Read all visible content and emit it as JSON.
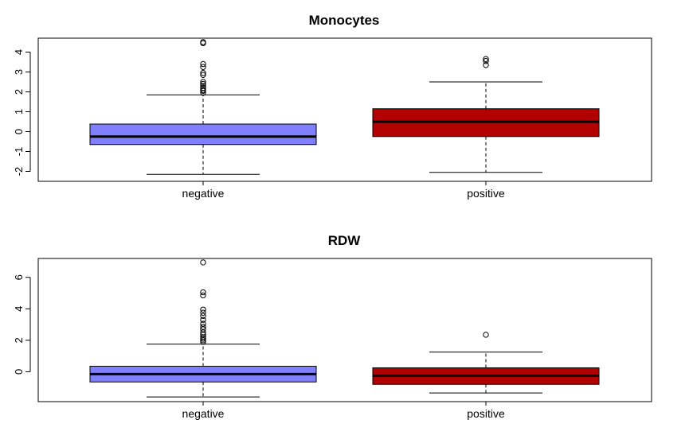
{
  "chart_data": [
    {
      "type": "box",
      "title": "Monocytes",
      "xlabel": "",
      "ylabel": "",
      "categories": [
        "negative",
        "positive"
      ],
      "ylim": [
        -2.5,
        4.7
      ],
      "yticks": [
        -2,
        -1,
        0,
        1,
        2,
        3,
        4
      ],
      "ytick_labels": [
        "-2",
        "-1",
        "0",
        "1",
        "2",
        "3",
        "4"
      ],
      "boxes": [
        {
          "category": "negative",
          "color": "#8080ff",
          "whisker_low": -2.15,
          "q1": -0.65,
          "median": -0.25,
          "q3": 0.38,
          "whisker_high": 1.85,
          "outliers": [
            1.95,
            2.05,
            2.1,
            2.2,
            2.3,
            2.4,
            2.5,
            2.85,
            2.95,
            3.25,
            3.4,
            4.45,
            4.5
          ]
        },
        {
          "category": "positive",
          "color": "#b30000",
          "whisker_low": -2.05,
          "q1": -0.25,
          "median": 0.5,
          "q3": 1.15,
          "whisker_high": 2.5,
          "outliers": [
            3.35,
            3.55,
            3.65
          ]
        }
      ],
      "grid": false
    },
    {
      "type": "box",
      "title": "RDW",
      "xlabel": "",
      "ylabel": "",
      "categories": [
        "negative",
        "positive"
      ],
      "ylim": [
        -1.9,
        7.2
      ],
      "yticks": [
        0,
        2,
        4,
        6
      ],
      "ytick_labels": [
        "0",
        "2",
        "4",
        "6"
      ],
      "boxes": [
        {
          "category": "negative",
          "color": "#8080ff",
          "whisker_low": -1.6,
          "q1": -0.65,
          "median": -0.15,
          "q3": 0.35,
          "whisker_high": 1.75,
          "outliers": [
            1.9,
            2.0,
            2.1,
            2.2,
            2.35,
            2.5,
            2.7,
            2.85,
            3.05,
            3.3,
            3.55,
            3.75,
            3.95,
            4.85,
            5.05,
            6.95
          ]
        },
        {
          "category": "positive",
          "color": "#b30000",
          "whisker_low": -1.35,
          "q1": -0.8,
          "median": -0.25,
          "q3": 0.25,
          "whisker_high": 1.25,
          "outliers": [
            2.35
          ]
        }
      ],
      "grid": false
    }
  ]
}
